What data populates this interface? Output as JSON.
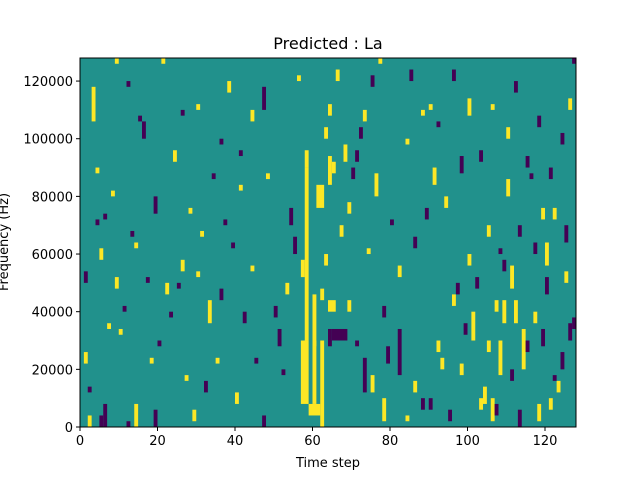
{
  "chart_data": {
    "type": "heatmap",
    "title": "Predicted : La",
    "xlabel": "Time step",
    "ylabel": "Frequency (Hz)",
    "xlim": [
      0,
      128
    ],
    "ylim": [
      0,
      128000
    ],
    "xticks": [
      0,
      20,
      40,
      60,
      80,
      100,
      120
    ],
    "xtick_labels": [
      "0",
      "20",
      "40",
      "60",
      "80",
      "100",
      "120"
    ],
    "yticks": [
      0,
      20000,
      40000,
      60000,
      80000,
      100000,
      120000
    ],
    "ytick_labels": [
      "0",
      "20000",
      "40000",
      "60000",
      "80000",
      "100000",
      "120000"
    ],
    "grid": false,
    "colormap": "viridis",
    "value_colors": {
      "low": "#440154",
      "mid": "#21918c",
      "high": "#fde725"
    },
    "background_value": "mid",
    "n_time_steps": 128,
    "n_frequency_bins": 64,
    "frequency_bin_width_hz": 2000,
    "cells_note_keys": [
      "t_start",
      "t_end",
      "f_start_hz",
      "f_end_hz",
      "value"
    ],
    "cells": [
      [
        2,
        3,
        0,
        4000,
        "high"
      ],
      [
        5,
        6,
        0,
        4000,
        "low"
      ],
      [
        6,
        7,
        0,
        8000,
        "low"
      ],
      [
        12,
        13,
        0,
        2000,
        "low"
      ],
      [
        14,
        15,
        0,
        8000,
        "high"
      ],
      [
        19,
        20,
        0,
        6000,
        "low"
      ],
      [
        59,
        62,
        4000,
        8000,
        "high"
      ],
      [
        57,
        59,
        8000,
        30000,
        "high"
      ],
      [
        60,
        61,
        8000,
        30000,
        "high"
      ],
      [
        62,
        63,
        0,
        30000,
        "high"
      ],
      [
        58,
        59,
        30000,
        90000,
        "high"
      ],
      [
        57,
        58,
        52000,
        58000,
        "high"
      ],
      [
        60,
        61,
        28000,
        46000,
        "high"
      ],
      [
        61,
        63,
        76000,
        84000,
        "high"
      ],
      [
        64,
        65,
        84000,
        94000,
        "high"
      ],
      [
        65,
        66,
        88000,
        92000,
        "high"
      ],
      [
        58,
        59,
        90000,
        96000,
        "high"
      ],
      [
        64,
        66,
        40000,
        44000,
        "high"
      ],
      [
        62,
        63,
        44000,
        48000,
        "high"
      ],
      [
        63,
        64,
        56000,
        60000,
        "high"
      ],
      [
        64,
        65,
        28000,
        34000,
        "low"
      ],
      [
        65,
        69,
        30000,
        34000,
        "low"
      ],
      [
        69,
        70,
        40000,
        44000,
        "high"
      ],
      [
        71,
        72,
        28000,
        30000,
        "low"
      ],
      [
        73,
        74,
        12000,
        24000,
        "low"
      ],
      [
        75,
        76,
        12000,
        18000,
        "high"
      ],
      [
        78,
        79,
        2000,
        10000,
        "high"
      ],
      [
        79,
        80,
        22000,
        28000,
        "low"
      ],
      [
        82,
        83,
        18000,
        34000,
        "low"
      ],
      [
        84,
        85,
        2000,
        4000,
        "high"
      ],
      [
        90,
        91,
        6000,
        10000,
        "low"
      ],
      [
        93,
        94,
        20000,
        24000,
        "high"
      ],
      [
        96,
        97,
        42000,
        46000,
        "high"
      ],
      [
        99,
        100,
        32000,
        36000,
        "low"
      ],
      [
        101,
        102,
        30000,
        40000,
        "high"
      ],
      [
        103,
        104,
        6000,
        10000,
        "high"
      ],
      [
        104,
        105,
        8000,
        14000,
        "high"
      ],
      [
        106,
        107,
        2000,
        10000,
        "high"
      ],
      [
        107,
        108,
        4000,
        8000,
        "low"
      ],
      [
        108,
        109,
        18000,
        30000,
        "high"
      ],
      [
        109,
        110,
        36000,
        44000,
        "high"
      ],
      [
        111,
        112,
        48000,
        56000,
        "high"
      ],
      [
        112,
        113,
        36000,
        44000,
        "high"
      ],
      [
        114,
        115,
        20000,
        34000,
        "high"
      ],
      [
        115,
        116,
        26000,
        30000,
        "low"
      ],
      [
        117,
        118,
        36000,
        40000,
        "high"
      ],
      [
        119,
        120,
        28000,
        34000,
        "low"
      ],
      [
        120,
        121,
        46000,
        52000,
        "low"
      ],
      [
        121,
        122,
        6000,
        10000,
        "high"
      ],
      [
        122,
        123,
        16000,
        18000,
        "low"
      ],
      [
        124,
        125,
        20000,
        26000,
        "low"
      ],
      [
        126,
        127,
        30000,
        36000,
        "low"
      ],
      [
        127,
        128,
        34000,
        38000,
        "low"
      ],
      [
        127,
        128,
        126000,
        128000,
        "low"
      ],
      [
        3,
        4,
        106000,
        118000,
        "high"
      ],
      [
        4,
        5,
        88000,
        90000,
        "high"
      ],
      [
        5,
        6,
        58000,
        62000,
        "high"
      ],
      [
        6,
        7,
        72000,
        74000,
        "low"
      ],
      [
        8,
        9,
        80000,
        82000,
        "high"
      ],
      [
        10,
        11,
        32000,
        34000,
        "high"
      ],
      [
        11,
        12,
        40000,
        42000,
        "low"
      ],
      [
        14,
        15,
        62000,
        64000,
        "high"
      ],
      [
        15,
        16,
        106000,
        108000,
        "low"
      ],
      [
        17,
        18,
        50000,
        52000,
        "low"
      ],
      [
        19,
        20,
        74000,
        80000,
        "low"
      ],
      [
        20,
        21,
        28000,
        30000,
        "low"
      ],
      [
        21,
        22,
        126000,
        128000,
        "high"
      ],
      [
        22,
        23,
        46000,
        50000,
        "high"
      ],
      [
        25,
        26,
        48000,
        50000,
        "low"
      ],
      [
        26,
        27,
        108000,
        110000,
        "low"
      ],
      [
        28,
        29,
        74000,
        76000,
        "high"
      ],
      [
        30,
        31,
        52000,
        54000,
        "high"
      ],
      [
        31,
        32,
        66000,
        68000,
        "high"
      ],
      [
        33,
        34,
        36000,
        44000,
        "high"
      ],
      [
        35,
        36,
        22000,
        24000,
        "high"
      ],
      [
        36,
        37,
        98000,
        100000,
        "low"
      ],
      [
        38,
        39,
        116000,
        120000,
        "high"
      ],
      [
        39,
        40,
        62000,
        64000,
        "low"
      ],
      [
        41,
        42,
        82000,
        84000,
        "high"
      ],
      [
        42,
        43,
        36000,
        40000,
        "low"
      ],
      [
        44,
        45,
        54000,
        56000,
        "high"
      ],
      [
        45,
        46,
        22000,
        24000,
        "low"
      ],
      [
        47,
        48,
        110000,
        118000,
        "low"
      ],
      [
        48,
        49,
        86000,
        88000,
        "high"
      ],
      [
        50,
        51,
        38000,
        42000,
        "low"
      ],
      [
        52,
        53,
        18000,
        20000,
        "low"
      ],
      [
        55,
        56,
        60000,
        66000,
        "low"
      ],
      [
        56,
        57,
        120000,
        122000,
        "high"
      ],
      [
        67,
        68,
        66000,
        70000,
        "high"
      ],
      [
        68,
        69,
        92000,
        98000,
        "high"
      ],
      [
        70,
        71,
        86000,
        90000,
        "low"
      ],
      [
        72,
        73,
        100000,
        104000,
        "low"
      ],
      [
        74,
        75,
        60000,
        62000,
        "high"
      ],
      [
        76,
        77,
        80000,
        88000,
        "high"
      ],
      [
        78,
        79,
        38000,
        42000,
        "low"
      ],
      [
        80,
        81,
        70000,
        72000,
        "low"
      ],
      [
        84,
        85,
        98000,
        100000,
        "high"
      ],
      [
        86,
        87,
        62000,
        66000,
        "low"
      ],
      [
        88,
        89,
        108000,
        110000,
        "high"
      ],
      [
        91,
        92,
        84000,
        90000,
        "high"
      ],
      [
        94,
        95,
        76000,
        80000,
        "high"
      ],
      [
        97,
        98,
        46000,
        50000,
        "low"
      ],
      [
        98,
        99,
        88000,
        94000,
        "low"
      ],
      [
        100,
        101,
        56000,
        60000,
        "high"
      ],
      [
        103,
        104,
        92000,
        96000,
        "low"
      ],
      [
        106,
        107,
        110000,
        112000,
        "high"
      ],
      [
        108,
        109,
        60000,
        62000,
        "low"
      ],
      [
        110,
        111,
        80000,
        86000,
        "high"
      ],
      [
        113,
        114,
        66000,
        70000,
        "low"
      ],
      [
        116,
        117,
        86000,
        88000,
        "low"
      ],
      [
        118,
        119,
        104000,
        108000,
        "low"
      ],
      [
        120,
        121,
        56000,
        64000,
        "high"
      ],
      [
        122,
        123,
        72000,
        76000,
        "high"
      ],
      [
        124,
        125,
        98000,
        102000,
        "low"
      ],
      [
        126,
        127,
        110000,
        114000,
        "high"
      ],
      [
        12,
        13,
        118000,
        120000,
        "low"
      ],
      [
        9,
        10,
        126000,
        128000,
        "high"
      ],
      [
        32,
        33,
        12000,
        16000,
        "low"
      ],
      [
        29,
        30,
        2000,
        6000,
        "high"
      ],
      [
        40,
        41,
        8000,
        12000,
        "high"
      ],
      [
        47,
        48,
        0,
        4000,
        "low"
      ],
      [
        51,
        52,
        28000,
        34000,
        "low"
      ],
      [
        53,
        54,
        46000,
        50000,
        "high"
      ],
      [
        54,
        55,
        70000,
        76000,
        "low"
      ],
      [
        36,
        37,
        44000,
        48000,
        "low"
      ],
      [
        26,
        27,
        54000,
        58000,
        "high"
      ],
      [
        24,
        25,
        92000,
        96000,
        "high"
      ],
      [
        16,
        17,
        100000,
        106000,
        "low"
      ],
      [
        7,
        8,
        34000,
        36000,
        "high"
      ],
      [
        1,
        2,
        22000,
        26000,
        "high"
      ],
      [
        2,
        3,
        12000,
        14000,
        "low"
      ],
      [
        86,
        87,
        12000,
        16000,
        "high"
      ],
      [
        88,
        89,
        6000,
        10000,
        "low"
      ],
      [
        92,
        93,
        26000,
        30000,
        "high"
      ],
      [
        95,
        96,
        2000,
        6000,
        "low"
      ],
      [
        98,
        99,
        18000,
        22000,
        "high"
      ],
      [
        102,
        103,
        48000,
        52000,
        "low"
      ],
      [
        105,
        106,
        26000,
        30000,
        "high"
      ],
      [
        113,
        114,
        0,
        6000,
        "low"
      ],
      [
        118,
        119,
        2000,
        8000,
        "high"
      ],
      [
        123,
        124,
        12000,
        16000,
        "high"
      ],
      [
        125,
        126,
        50000,
        54000,
        "high"
      ],
      [
        110,
        111,
        100000,
        104000,
        "high"
      ],
      [
        112,
        113,
        116000,
        120000,
        "low"
      ],
      [
        115,
        116,
        90000,
        94000,
        "low"
      ],
      [
        100,
        101,
        108000,
        114000,
        "high"
      ],
      [
        96,
        97,
        120000,
        124000,
        "low"
      ],
      [
        92,
        93,
        104000,
        106000,
        "low"
      ],
      [
        89,
        90,
        72000,
        76000,
        "low"
      ],
      [
        82,
        83,
        52000,
        56000,
        "high"
      ],
      [
        77,
        78,
        126000,
        128000,
        "high"
      ],
      [
        75,
        76,
        118000,
        122000,
        "low"
      ],
      [
        73,
        74,
        106000,
        110000,
        "high"
      ],
      [
        71,
        72,
        92000,
        96000,
        "low"
      ],
      [
        69,
        70,
        74000,
        78000,
        "high"
      ],
      [
        66,
        67,
        120000,
        124000,
        "high"
      ],
      [
        64,
        65,
        108000,
        112000,
        "high"
      ],
      [
        63,
        64,
        100000,
        104000,
        "high"
      ],
      [
        85,
        86,
        120000,
        124000,
        "low"
      ],
      [
        90,
        91,
        110000,
        112000,
        "high"
      ],
      [
        105,
        106,
        66000,
        70000,
        "high"
      ],
      [
        107,
        108,
        40000,
        44000,
        "high"
      ],
      [
        109,
        110,
        54000,
        58000,
        "low"
      ],
      [
        111,
        112,
        16000,
        20000,
        "low"
      ],
      [
        117,
        118,
        60000,
        64000,
        "low"
      ],
      [
        119,
        120,
        72000,
        76000,
        "high"
      ],
      [
        121,
        122,
        86000,
        90000,
        "low"
      ],
      [
        125,
        126,
        64000,
        70000,
        "low"
      ],
      [
        44,
        45,
        106000,
        110000,
        "high"
      ],
      [
        41,
        42,
        94000,
        96000,
        "low"
      ],
      [
        37,
        38,
        70000,
        72000,
        "low"
      ],
      [
        34,
        35,
        86000,
        88000,
        "low"
      ],
      [
        30,
        31,
        110000,
        112000,
        "high"
      ],
      [
        27,
        28,
        16000,
        18000,
        "high"
      ],
      [
        23,
        24,
        38000,
        40000,
        "low"
      ],
      [
        18,
        19,
        22000,
        24000,
        "high"
      ],
      [
        13,
        14,
        66000,
        68000,
        "low"
      ],
      [
        9,
        10,
        48000,
        52000,
        "high"
      ],
      [
        4,
        5,
        70000,
        72000,
        "low"
      ],
      [
        1,
        2,
        50000,
        54000,
        "low"
      ]
    ]
  }
}
